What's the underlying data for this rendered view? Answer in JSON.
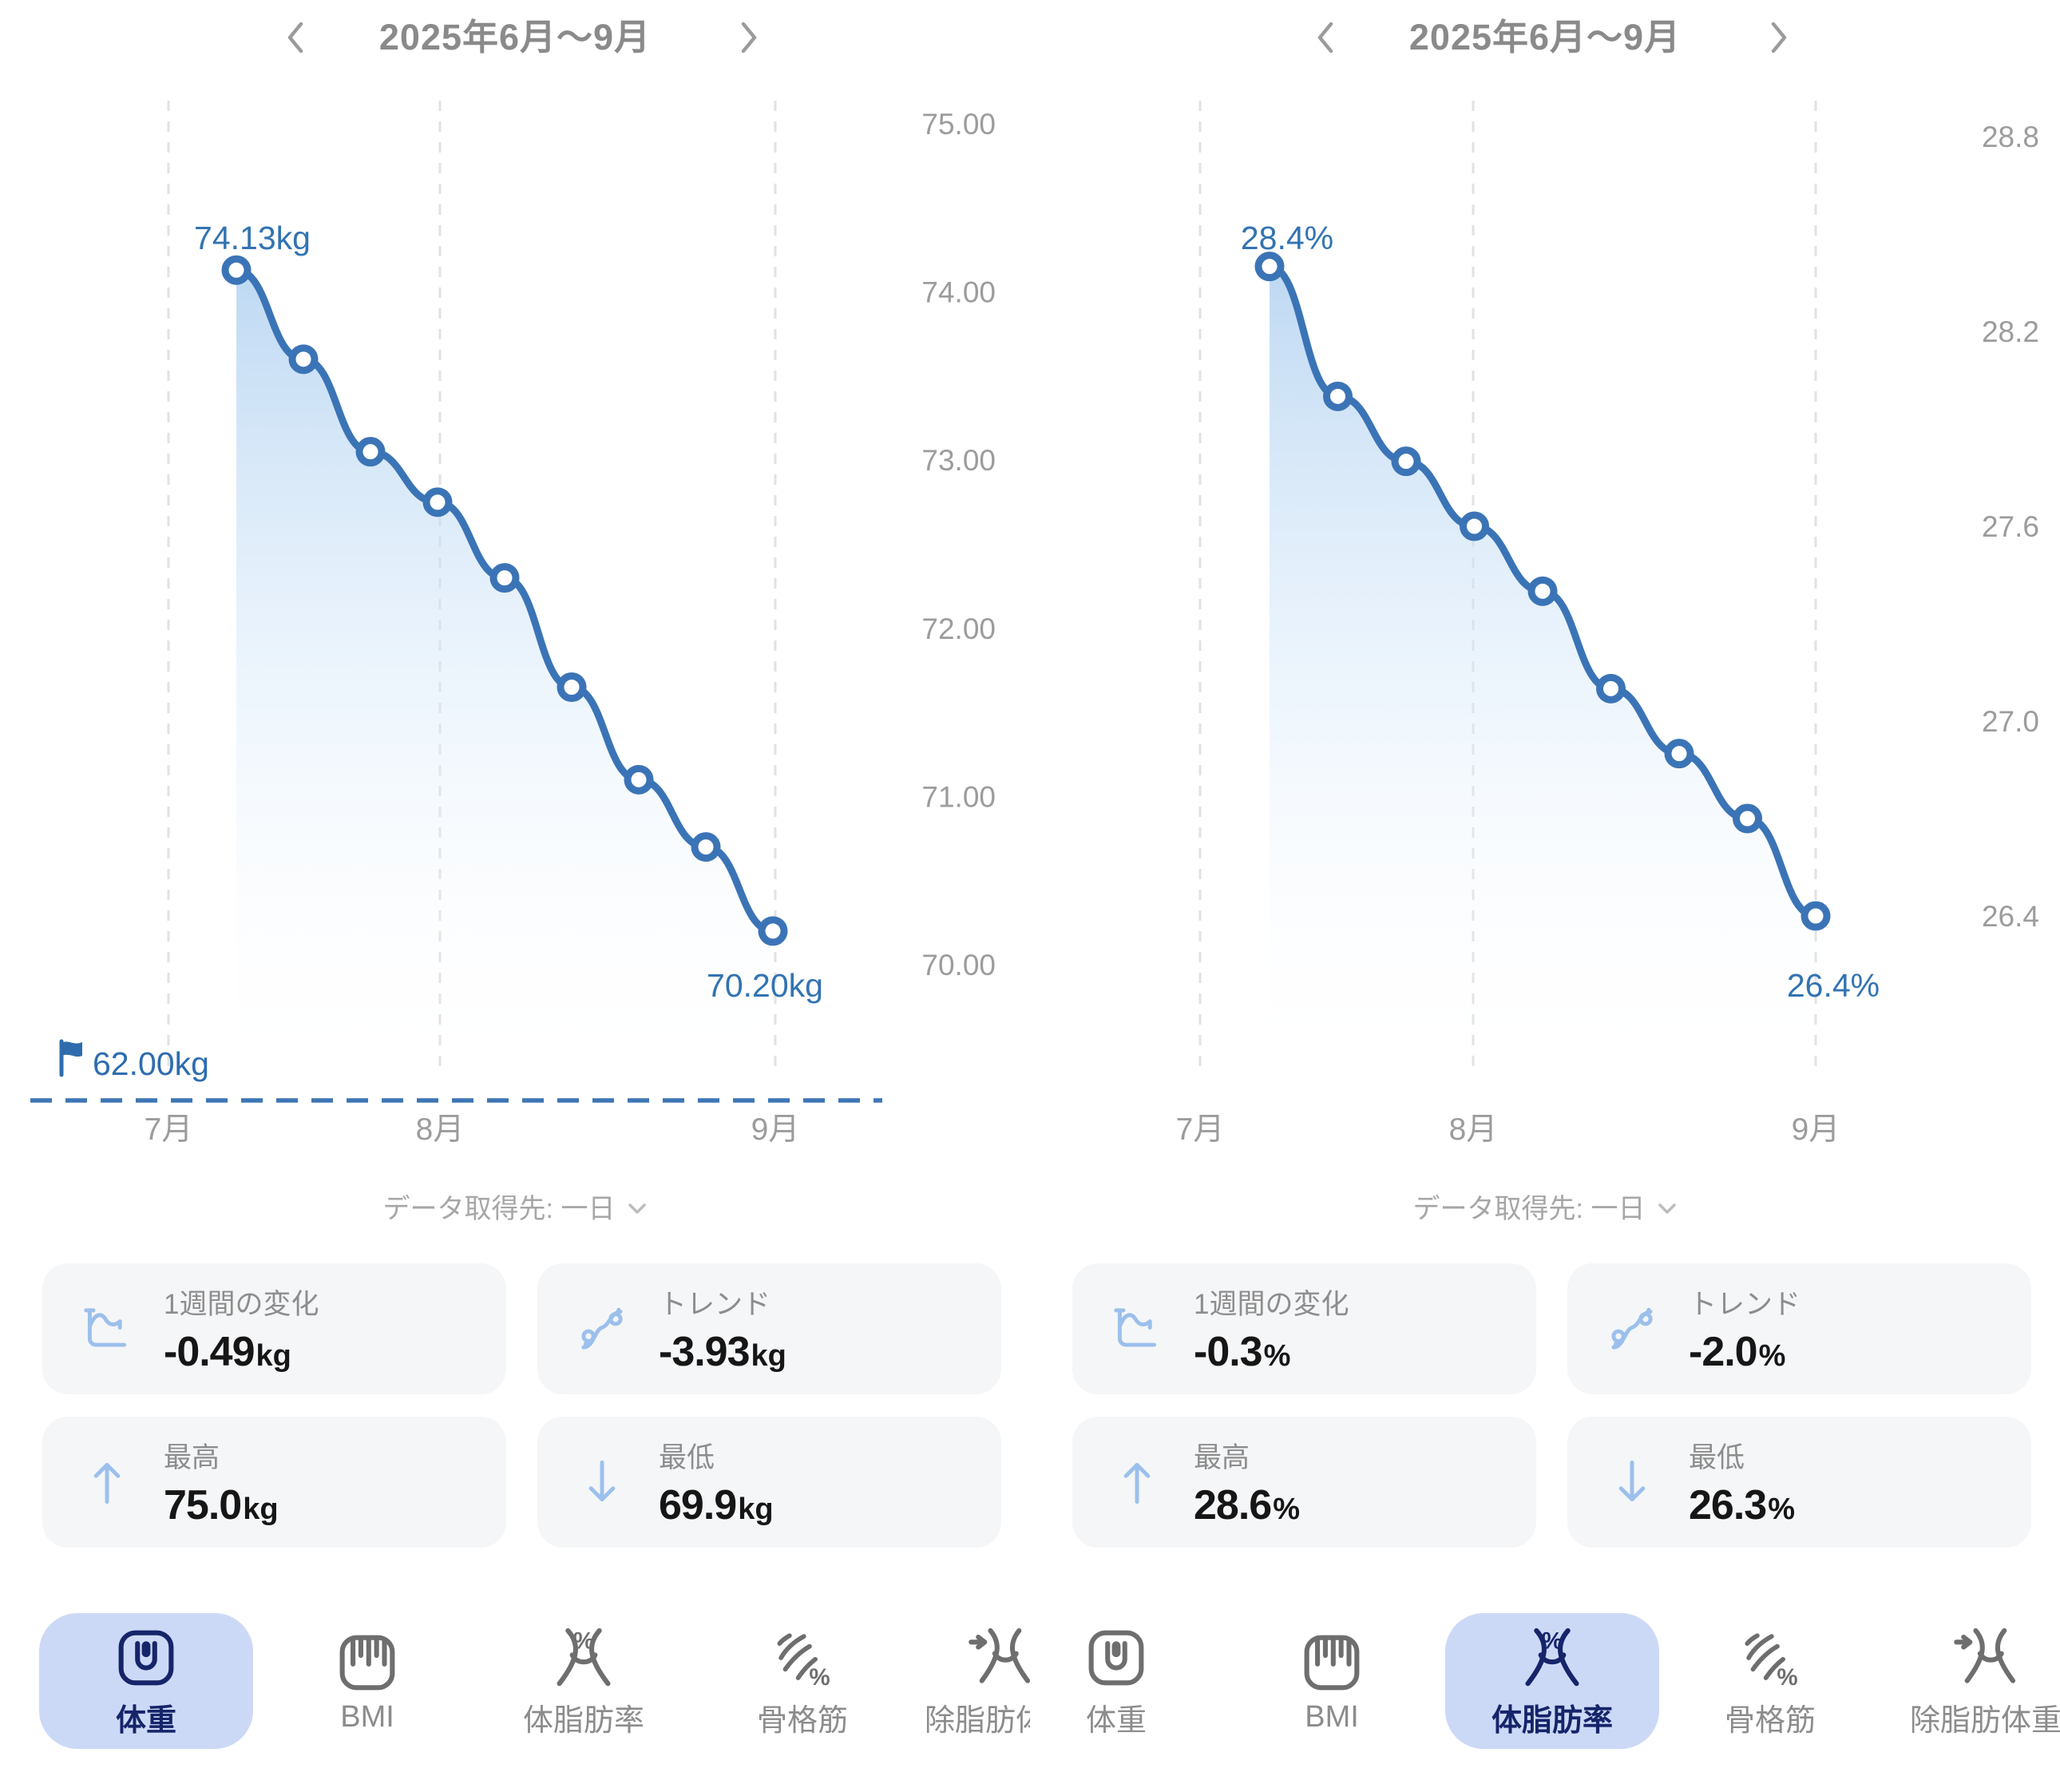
{
  "colors": {
    "line_blue": "#3b74b6",
    "point_label_blue": "#3273b2",
    "goal_blue": "#2e6cae",
    "area_fill_top": "#aecff0",
    "selected_tab_bg": "#ccd9f6",
    "selected_tab_fg": "#16246a",
    "card_bg": "#f5f6f8",
    "card_icon_blue": "#9cc0ec",
    "gray_text": "#8a8a8a"
  },
  "panels": [
    {
      "metric": "体重",
      "header": {
        "title": "2025年6月〜9月",
        "prev": "previous period",
        "next": "next period"
      },
      "source_label": "データ取得先: 一日",
      "stats": [
        {
          "icon": "week-change-icon",
          "label": "1週間の変化",
          "value": "-0.49",
          "unit": "kg"
        },
        {
          "icon": "trend-icon",
          "label": "トレンド",
          "value": "-3.93",
          "unit": "kg"
        },
        {
          "icon": "arrow-up-icon",
          "label": "最高",
          "value": "75.0",
          "unit": "kg"
        },
        {
          "icon": "arrow-down-icon",
          "label": "最低",
          "value": "69.9",
          "unit": "kg"
        }
      ],
      "tabs": [
        {
          "icon": "scale-icon",
          "label": "体重",
          "selected": true
        },
        {
          "icon": "ruler-icon",
          "label": "BMI",
          "selected": false
        },
        {
          "icon": "bodyfat-icon",
          "label": "体脂肪率",
          "selected": false
        },
        {
          "icon": "muscle-icon",
          "label": "骨格筋",
          "selected": false
        },
        {
          "icon": "leanmass-icon",
          "label": "除脂肪体重",
          "selected": false
        }
      ]
    },
    {
      "metric": "体脂肪率",
      "header": {
        "title": "2025年6月〜9月",
        "prev": "previous period",
        "next": "next period"
      },
      "source_label": "データ取得先: 一日",
      "stats": [
        {
          "icon": "week-change-icon",
          "label": "1週間の変化",
          "value": "-0.3",
          "unit": "%"
        },
        {
          "icon": "trend-icon",
          "label": "トレンド",
          "value": "-2.0",
          "unit": "%"
        },
        {
          "icon": "arrow-up-icon",
          "label": "最高",
          "value": "28.6",
          "unit": "%"
        },
        {
          "icon": "arrow-down-icon",
          "label": "最低",
          "value": "26.3",
          "unit": "%"
        }
      ],
      "tabs": [
        {
          "icon": "scale-icon",
          "label": "体重",
          "selected": false
        },
        {
          "icon": "ruler-icon",
          "label": "BMI",
          "selected": false
        },
        {
          "icon": "bodyfat-icon",
          "label": "体脂肪率",
          "selected": true
        },
        {
          "icon": "muscle-icon",
          "label": "骨格筋",
          "selected": false
        },
        {
          "icon": "leanmass-icon",
          "label": "除脂肪体重",
          "selected": false
        }
      ]
    }
  ],
  "chart_data": [
    {
      "type": "area",
      "metric": "体重",
      "unit": "kg",
      "period": "2025年6月〜9月",
      "values": [
        74.13,
        73.6,
        73.05,
        72.75,
        72.3,
        71.65,
        71.1,
        70.7,
        70.2
      ],
      "y_ticks": [
        "75.00",
        "74.00",
        "73.00",
        "72.00",
        "71.00",
        "70.00"
      ],
      "x_tick_labels": [
        "7月",
        "8月",
        "9月"
      ],
      "start_point_label": "74.13kg",
      "end_point_label": "70.20kg",
      "goal_label": "62.00kg",
      "grid": "vertical-dashed",
      "legend": false
    },
    {
      "type": "area",
      "metric": "体脂肪率",
      "unit": "%",
      "period": "2025年6月〜9月",
      "values": [
        28.4,
        28.0,
        27.8,
        27.6,
        27.4,
        27.1,
        26.9,
        26.7,
        26.4
      ],
      "y_ticks": [
        "28.8",
        "28.2",
        "27.6",
        "27.0",
        "26.4"
      ],
      "x_tick_labels": [
        "7月",
        "8月",
        "9月"
      ],
      "start_point_label": "28.4%",
      "end_point_label": "26.4%",
      "goal_label": null,
      "grid": "vertical-dashed",
      "legend": false
    }
  ]
}
